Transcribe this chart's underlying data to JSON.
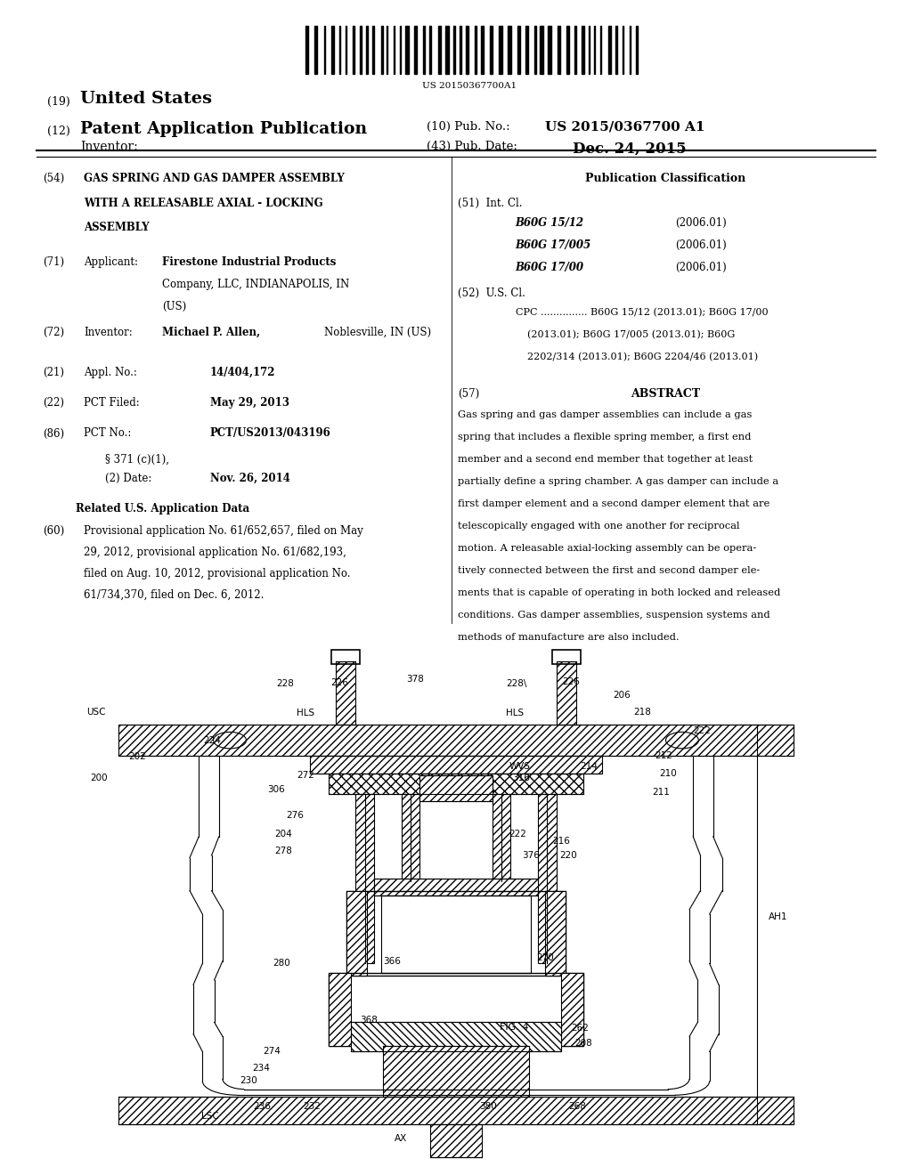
{
  "background_color": "#ffffff",
  "barcode_text": "US 20150367700A1",
  "patent_number_label": "(19)",
  "patent_title_19": "United States",
  "patent_number_label2": "(12)",
  "patent_title_12": "Patent Application Publication",
  "pub_no_label": "(10) Pub. No.:",
  "pub_no_value": "US 2015/0367700 A1",
  "inventor_label": "Inventor:",
  "pub_date_label": "(43) Pub. Date:",
  "pub_date_value": "Dec. 24, 2015",
  "title_num": "(54)",
  "title_text": "GAS SPRING AND GAS DAMPER ASSEMBLY\nWITH A RELEASABLE AXIAL - LOCKING\nASSEMBLY",
  "pub_class_header": "Publication Classification",
  "int_cl_label": "(51)  Int. Cl.",
  "int_cl_entries": [
    [
      "B60G 15/12",
      "(2006.01)"
    ],
    [
      "B60G 17/005",
      "(2006.01)"
    ],
    [
      "B60G 17/00",
      "(2006.01)"
    ]
  ],
  "us_cl_label": "(52)  U.S. Cl.",
  "cpc_text": "CPC ............... B60G 15/12 (2013.01); B60G 17/00\n(2013.01); B60G 17/005 (2013.01); B60G\n2202/314 (2013.01); B60G 2204/46 (2013.01)",
  "abstract_num": "(57)",
  "abstract_header": "ABSTRACT",
  "abstract_text": "Gas spring and gas damper assemblies can include a gas\nspring that includes a flexible spring member, a first end\nmember and a second end member that together at least\npartially define a spring chamber. A gas damper can include a\nfirst damper element and a second damper element that are\ntelescopically engaged with one another for reciprocal\nmotion. A releasable axial-locking assembly can be opera-\ntively connected between the first and second damper ele-\nments that is capable of operating in both locked and released\nconditions. Gas damper assemblies, suspension systems and\nmethods of manufacture are also included.",
  "applicant_num": "(71)",
  "applicant_label": "Applicant:",
  "applicant_text_bold": "Firestone Industrial Products",
  "applicant_text_rest": "Company, LLC, INDIANAPOLIS, IN\n(US)",
  "inventor_num": "(72)",
  "inventor_name": "Michael P. Allen,",
  "inventor_loc": "Noblesville, IN (US)",
  "appl_no_num": "(21)",
  "appl_no_label": "Appl. No.:",
  "appl_no_value": "14/404,172",
  "pct_filed_num": "(22)",
  "pct_filed_label": "PCT Filed:",
  "pct_filed_value": "May 29, 2013",
  "pct_no_num": "(86)",
  "pct_no_label": "PCT No.:",
  "pct_no_value": "PCT/US2013/043196",
  "section_371_line1": "§ 371 (c)(1),",
  "section_371_line2": "(2) Date:",
  "section_371_date": "Nov. 26, 2014",
  "related_header": "Related U.S. Application Data",
  "related_num": "(60)",
  "related_text_lines": [
    "Provisional application No. 61/652,657, filed on May",
    "29, 2012, provisional application No. 61/682,193,",
    "filed on Aug. 10, 2012, provisional application No.",
    "61/734,370, filed on Dec. 6, 2012."
  ]
}
